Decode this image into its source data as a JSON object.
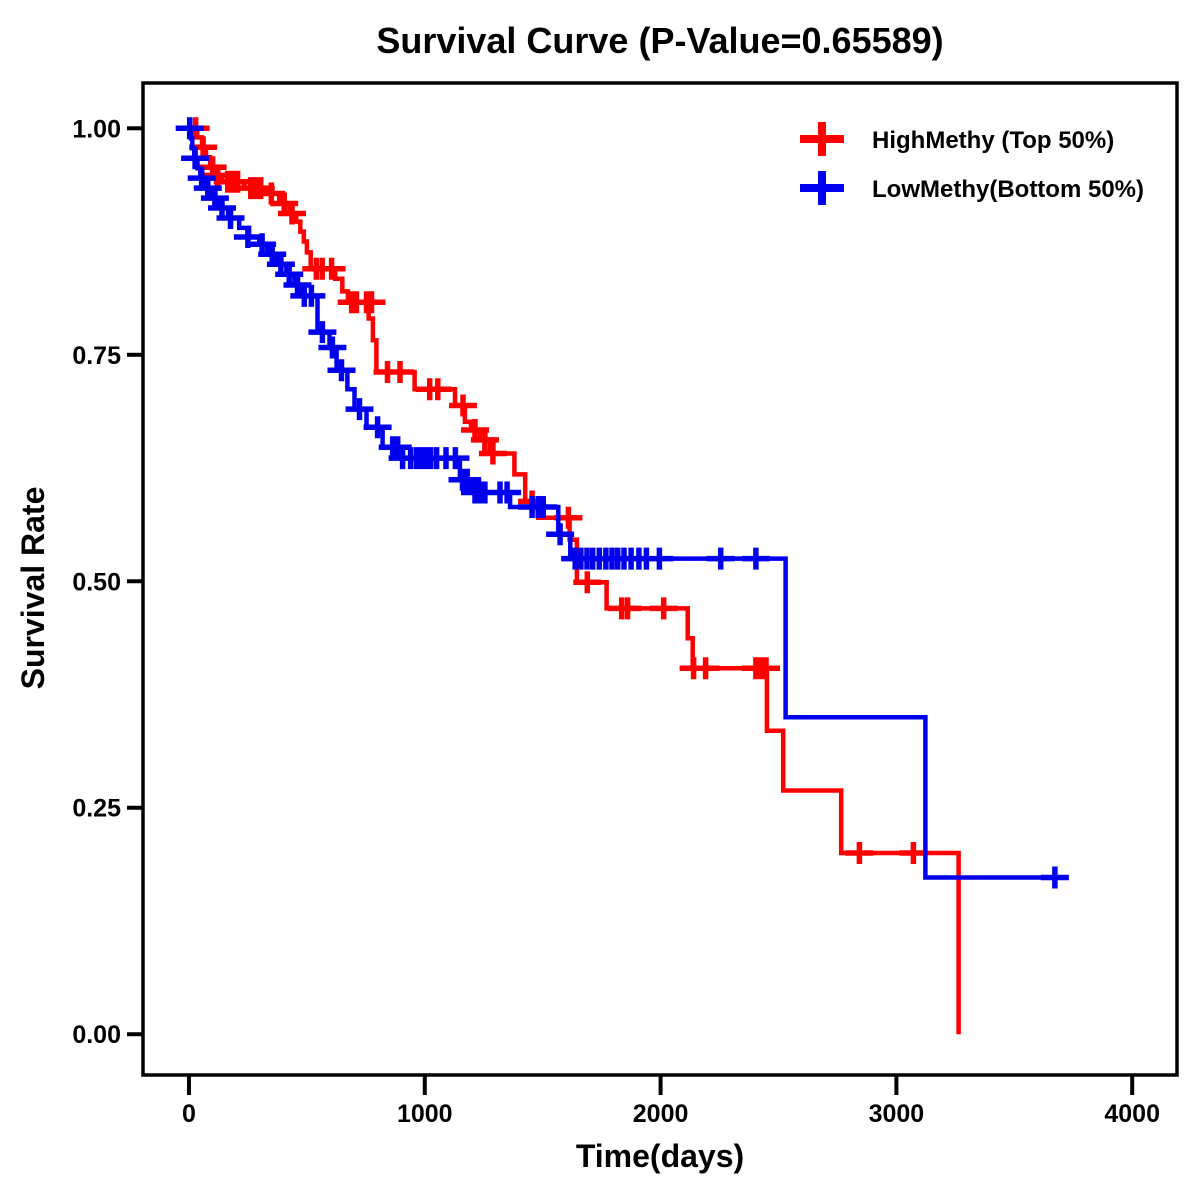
{
  "title": "Survival Curve (P-Value=0.65589)",
  "p_value": "0.65589",
  "chart_data": {
    "type": "line",
    "subtype": "kaplan-meier-step",
    "title": "Survival Curve (P-Value=0.65589)",
    "xlabel": "Time(days)",
    "ylabel": "Survival Rate",
    "xlim": [
      -195,
      4190
    ],
    "ylim": [
      -0.045,
      1.05
    ],
    "xticks": [
      0,
      1000,
      2000,
      3000,
      4000
    ],
    "ytick_values": [
      0,
      0.25,
      0.5,
      0.75,
      1
    ],
    "ytick_labels": [
      "0.00",
      "0.25",
      "0.50",
      "0.75",
      "1.00"
    ],
    "grid": false,
    "legend_position": "top-right",
    "frame_color": "#000000",
    "series": [
      {
        "name": "HighMethy (Top 50%)",
        "color": "#FF0000",
        "end_day": 3264,
        "steps": [
          [
            0,
            1.0
          ],
          [
            35,
            0.99
          ],
          [
            55,
            0.979
          ],
          [
            72,
            0.968
          ],
          [
            90,
            0.957
          ],
          [
            115,
            0.948
          ],
          [
            140,
            0.941
          ],
          [
            234,
            0.934
          ],
          [
            311,
            0.928
          ],
          [
            383,
            0.917
          ],
          [
            426,
            0.906
          ],
          [
            455,
            0.897
          ],
          [
            472,
            0.886
          ],
          [
            487,
            0.875
          ],
          [
            500,
            0.863
          ],
          [
            516,
            0.845
          ],
          [
            620,
            0.834
          ],
          [
            650,
            0.82
          ],
          [
            674,
            0.808
          ],
          [
            762,
            0.79
          ],
          [
            780,
            0.766
          ],
          [
            795,
            0.731
          ],
          [
            957,
            0.712
          ],
          [
            1128,
            0.694
          ],
          [
            1170,
            0.676
          ],
          [
            1196,
            0.667
          ],
          [
            1234,
            0.656
          ],
          [
            1277,
            0.641
          ],
          [
            1380,
            0.618
          ],
          [
            1426,
            0.588
          ],
          [
            1481,
            0.57
          ],
          [
            1614,
            0.546
          ],
          [
            1645,
            0.499
          ],
          [
            1771,
            0.47
          ],
          [
            2115,
            0.437
          ],
          [
            2136,
            0.404
          ],
          [
            2451,
            0.335
          ],
          [
            2520,
            0.269
          ],
          [
            2766,
            0.2
          ],
          [
            3264,
            0.0
          ]
        ],
        "censors": [
          [
            28,
            1.0
          ],
          [
            60,
            0.979
          ],
          [
            100,
            0.957
          ],
          [
            122,
            0.948
          ],
          [
            164,
            0.941
          ],
          [
            185,
            0.941
          ],
          [
            206,
            0.941
          ],
          [
            262,
            0.934
          ],
          [
            283,
            0.934
          ],
          [
            304,
            0.934
          ],
          [
            349,
            0.928
          ],
          [
            404,
            0.917
          ],
          [
            437,
            0.906
          ],
          [
            540,
            0.845
          ],
          [
            565,
            0.845
          ],
          [
            605,
            0.845
          ],
          [
            690,
            0.808
          ],
          [
            710,
            0.808
          ],
          [
            753,
            0.808
          ],
          [
            774,
            0.808
          ],
          [
            842,
            0.731
          ],
          [
            895,
            0.731
          ],
          [
            1021,
            0.712
          ],
          [
            1055,
            0.712
          ],
          [
            1162,
            0.694
          ],
          [
            1213,
            0.667
          ],
          [
            1255,
            0.656
          ],
          [
            1289,
            0.641
          ],
          [
            1455,
            0.588
          ],
          [
            1609,
            0.57
          ],
          [
            1689,
            0.499
          ],
          [
            1835,
            0.47
          ],
          [
            1860,
            0.47
          ],
          [
            2013,
            0.47
          ],
          [
            2140,
            0.404
          ],
          [
            2191,
            0.404
          ],
          [
            2404,
            0.404
          ],
          [
            2426,
            0.404
          ],
          [
            2447,
            0.404
          ],
          [
            2843,
            0.2
          ],
          [
            3072,
            0.2
          ]
        ]
      },
      {
        "name": "LowMethy(Bottom 50%)",
        "color": "#0000EE",
        "end_day": 3700,
        "steps": [
          [
            0,
            1.0
          ],
          [
            8,
            0.989
          ],
          [
            14,
            0.978
          ],
          [
            22,
            0.967
          ],
          [
            36,
            0.956
          ],
          [
            48,
            0.945
          ],
          [
            64,
            0.934
          ],
          [
            100,
            0.923
          ],
          [
            128,
            0.912
          ],
          [
            166,
            0.901
          ],
          [
            213,
            0.89
          ],
          [
            255,
            0.88
          ],
          [
            298,
            0.872
          ],
          [
            332,
            0.861
          ],
          [
            374,
            0.85
          ],
          [
            413,
            0.839
          ],
          [
            447,
            0.827
          ],
          [
            477,
            0.815
          ],
          [
            545,
            0.775
          ],
          [
            596,
            0.758
          ],
          [
            626,
            0.733
          ],
          [
            672,
            0.712
          ],
          [
            702,
            0.69
          ],
          [
            753,
            0.67
          ],
          [
            821,
            0.648
          ],
          [
            872,
            0.636
          ],
          [
            1149,
            0.612
          ],
          [
            1196,
            0.598
          ],
          [
            1362,
            0.582
          ],
          [
            1566,
            0.552
          ],
          [
            1617,
            0.525
          ],
          [
            2530,
            0.35
          ],
          [
            3123,
            0.173
          ]
        ],
        "censors": [
          [
            3,
            1.0
          ],
          [
            26,
            0.967
          ],
          [
            54,
            0.945
          ],
          [
            80,
            0.934
          ],
          [
            110,
            0.923
          ],
          [
            140,
            0.912
          ],
          [
            176,
            0.901
          ],
          [
            250,
            0.88
          ],
          [
            310,
            0.872
          ],
          [
            353,
            0.861
          ],
          [
            390,
            0.85
          ],
          [
            425,
            0.839
          ],
          [
            460,
            0.827
          ],
          [
            489,
            0.815
          ],
          [
            519,
            0.815
          ],
          [
            566,
            0.775
          ],
          [
            608,
            0.758
          ],
          [
            647,
            0.733
          ],
          [
            723,
            0.69
          ],
          [
            800,
            0.67
          ],
          [
            864,
            0.648
          ],
          [
            885,
            0.648
          ],
          [
            906,
            0.636
          ],
          [
            940,
            0.636
          ],
          [
            965,
            0.636
          ],
          [
            985,
            0.636
          ],
          [
            1005,
            0.636
          ],
          [
            1025,
            0.636
          ],
          [
            1050,
            0.636
          ],
          [
            1090,
            0.636
          ],
          [
            1130,
            0.636
          ],
          [
            1160,
            0.612
          ],
          [
            1180,
            0.612
          ],
          [
            1213,
            0.598
          ],
          [
            1234,
            0.598
          ],
          [
            1255,
            0.598
          ],
          [
            1319,
            0.598
          ],
          [
            1349,
            0.598
          ],
          [
            1455,
            0.582
          ],
          [
            1481,
            0.582
          ],
          [
            1502,
            0.582
          ],
          [
            1574,
            0.552
          ],
          [
            1638,
            0.525
          ],
          [
            1662,
            0.525
          ],
          [
            1688,
            0.525
          ],
          [
            1712,
            0.525
          ],
          [
            1740,
            0.525
          ],
          [
            1768,
            0.525
          ],
          [
            1794,
            0.525
          ],
          [
            1818,
            0.525
          ],
          [
            1845,
            0.525
          ],
          [
            1875,
            0.525
          ],
          [
            1908,
            0.525
          ],
          [
            1940,
            0.525
          ],
          [
            1995,
            0.525
          ],
          [
            2255,
            0.525
          ],
          [
            2404,
            0.525
          ],
          [
            3672,
            0.173
          ]
        ]
      }
    ]
  },
  "legend": {
    "items": [
      {
        "label": "HighMethy (Top 50%)",
        "color": "#FF0000"
      },
      {
        "label": "LowMethy(Bottom 50%)",
        "color": "#0000EE"
      }
    ]
  }
}
